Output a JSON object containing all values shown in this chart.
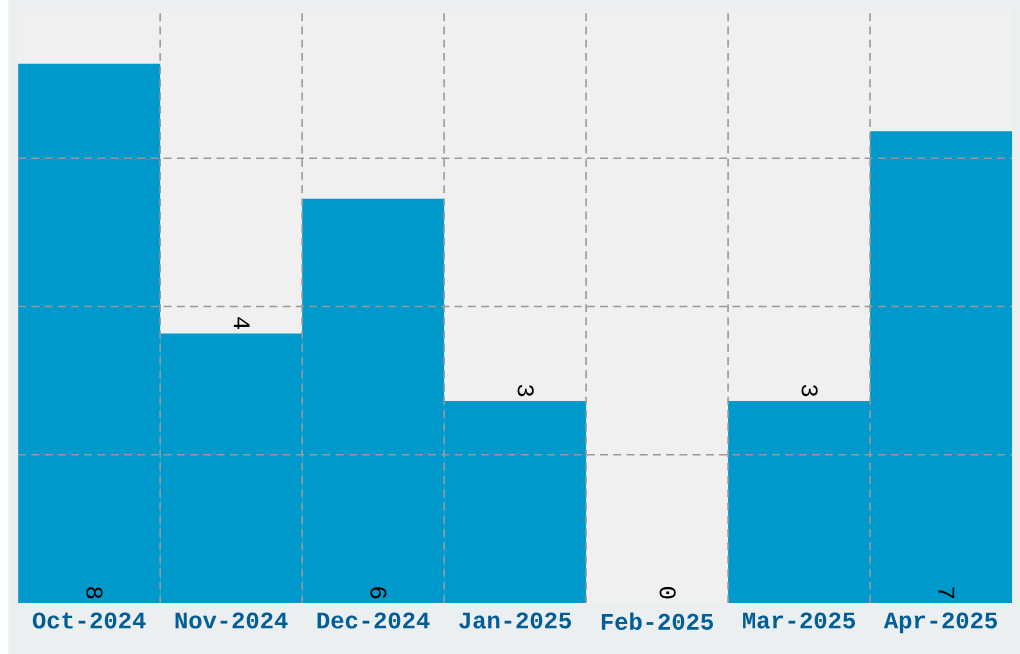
{
  "chart_data": {
    "type": "bar",
    "categories": [
      "Oct-2024",
      "Nov-2024",
      "Dec-2024",
      "Jan-2025",
      "Feb-2025",
      "Mar-2025",
      "Apr-2025"
    ],
    "values": [
      8,
      4,
      6,
      3,
      0,
      3,
      7
    ],
    "color": "#0099cc",
    "ylim": [
      0,
      8.8
    ],
    "yticks": [
      {
        "value": 2.2,
        "label": null
      },
      {
        "value": 4.4,
        "label": null
      },
      {
        "value": 6.6,
        "label": null
      }
    ],
    "tick_labels": "x",
    "grid": true,
    "data_labels": true
  }
}
